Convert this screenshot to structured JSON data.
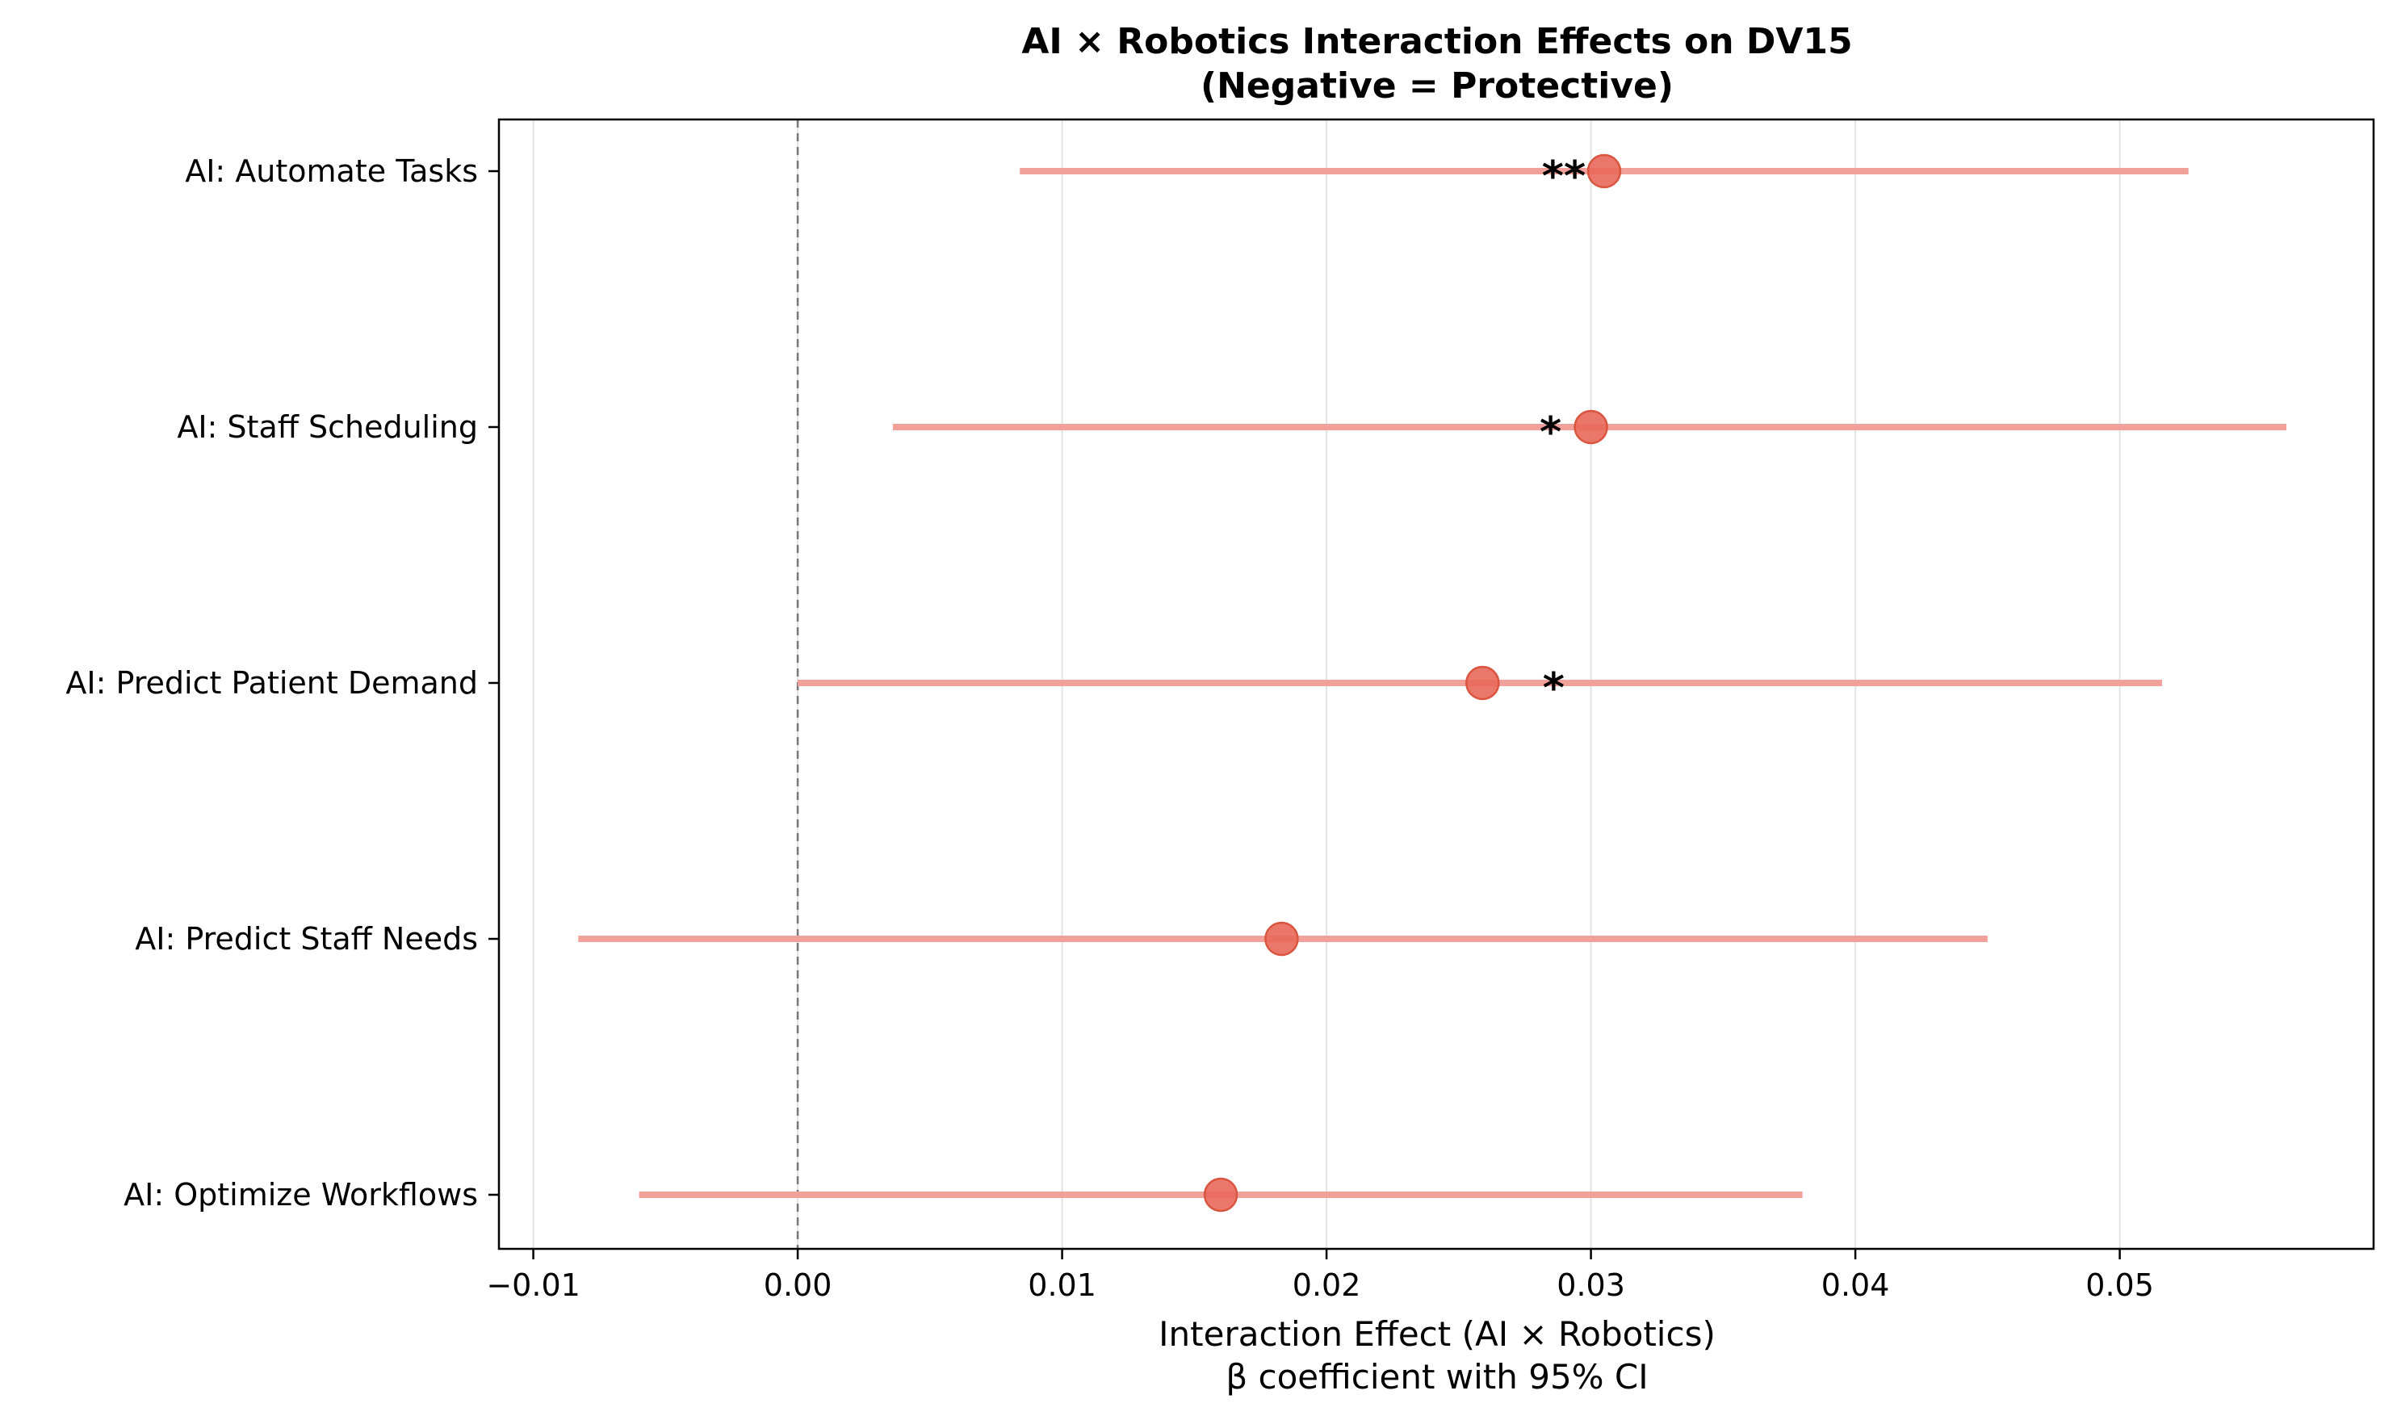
{
  "chart_data": {
    "type": "scatter",
    "subtype": "forest-plot",
    "title_line1": "AI × Robotics Interaction Effects on DV15",
    "title_line2": "(Negative = Protective)",
    "xlabel_line1": "Interaction Effect (AI × Robotics)",
    "xlabel_line2": "β coefficient with 95% CI",
    "xlim": [
      -0.0113,
      0.0596
    ],
    "xticks": [
      -0.01,
      0.0,
      0.01,
      0.02,
      0.03,
      0.04,
      0.05
    ],
    "xtick_labels": [
      "−0.01",
      "0.00",
      "0.01",
      "0.02",
      "0.03",
      "0.04",
      "0.05"
    ],
    "reference_line": 0.0,
    "grid": "vertical",
    "point_color": "#e8685a",
    "ci_color": "#f1a09a",
    "rows": [
      {
        "label": "AI: Automate Tasks",
        "estimate": 0.0305,
        "ci_low": 0.0084,
        "ci_high": 0.0526,
        "significance": "**"
      },
      {
        "label": "AI: Staff Scheduling",
        "estimate": 0.03,
        "ci_low": 0.0036,
        "ci_high": 0.0563,
        "significance": "*"
      },
      {
        "label": "AI: Predict Patient Demand",
        "estimate": 0.0259,
        "ci_low": 0.0,
        "ci_high": 0.0516,
        "significance": "*"
      },
      {
        "label": "AI: Predict Staff Needs",
        "estimate": 0.0183,
        "ci_low": -0.0083,
        "ci_high": 0.045,
        "significance": ""
      },
      {
        "label": "AI: Optimize Workflows",
        "estimate": 0.016,
        "ci_low": -0.006,
        "ci_high": 0.038,
        "significance": ""
      }
    ]
  }
}
